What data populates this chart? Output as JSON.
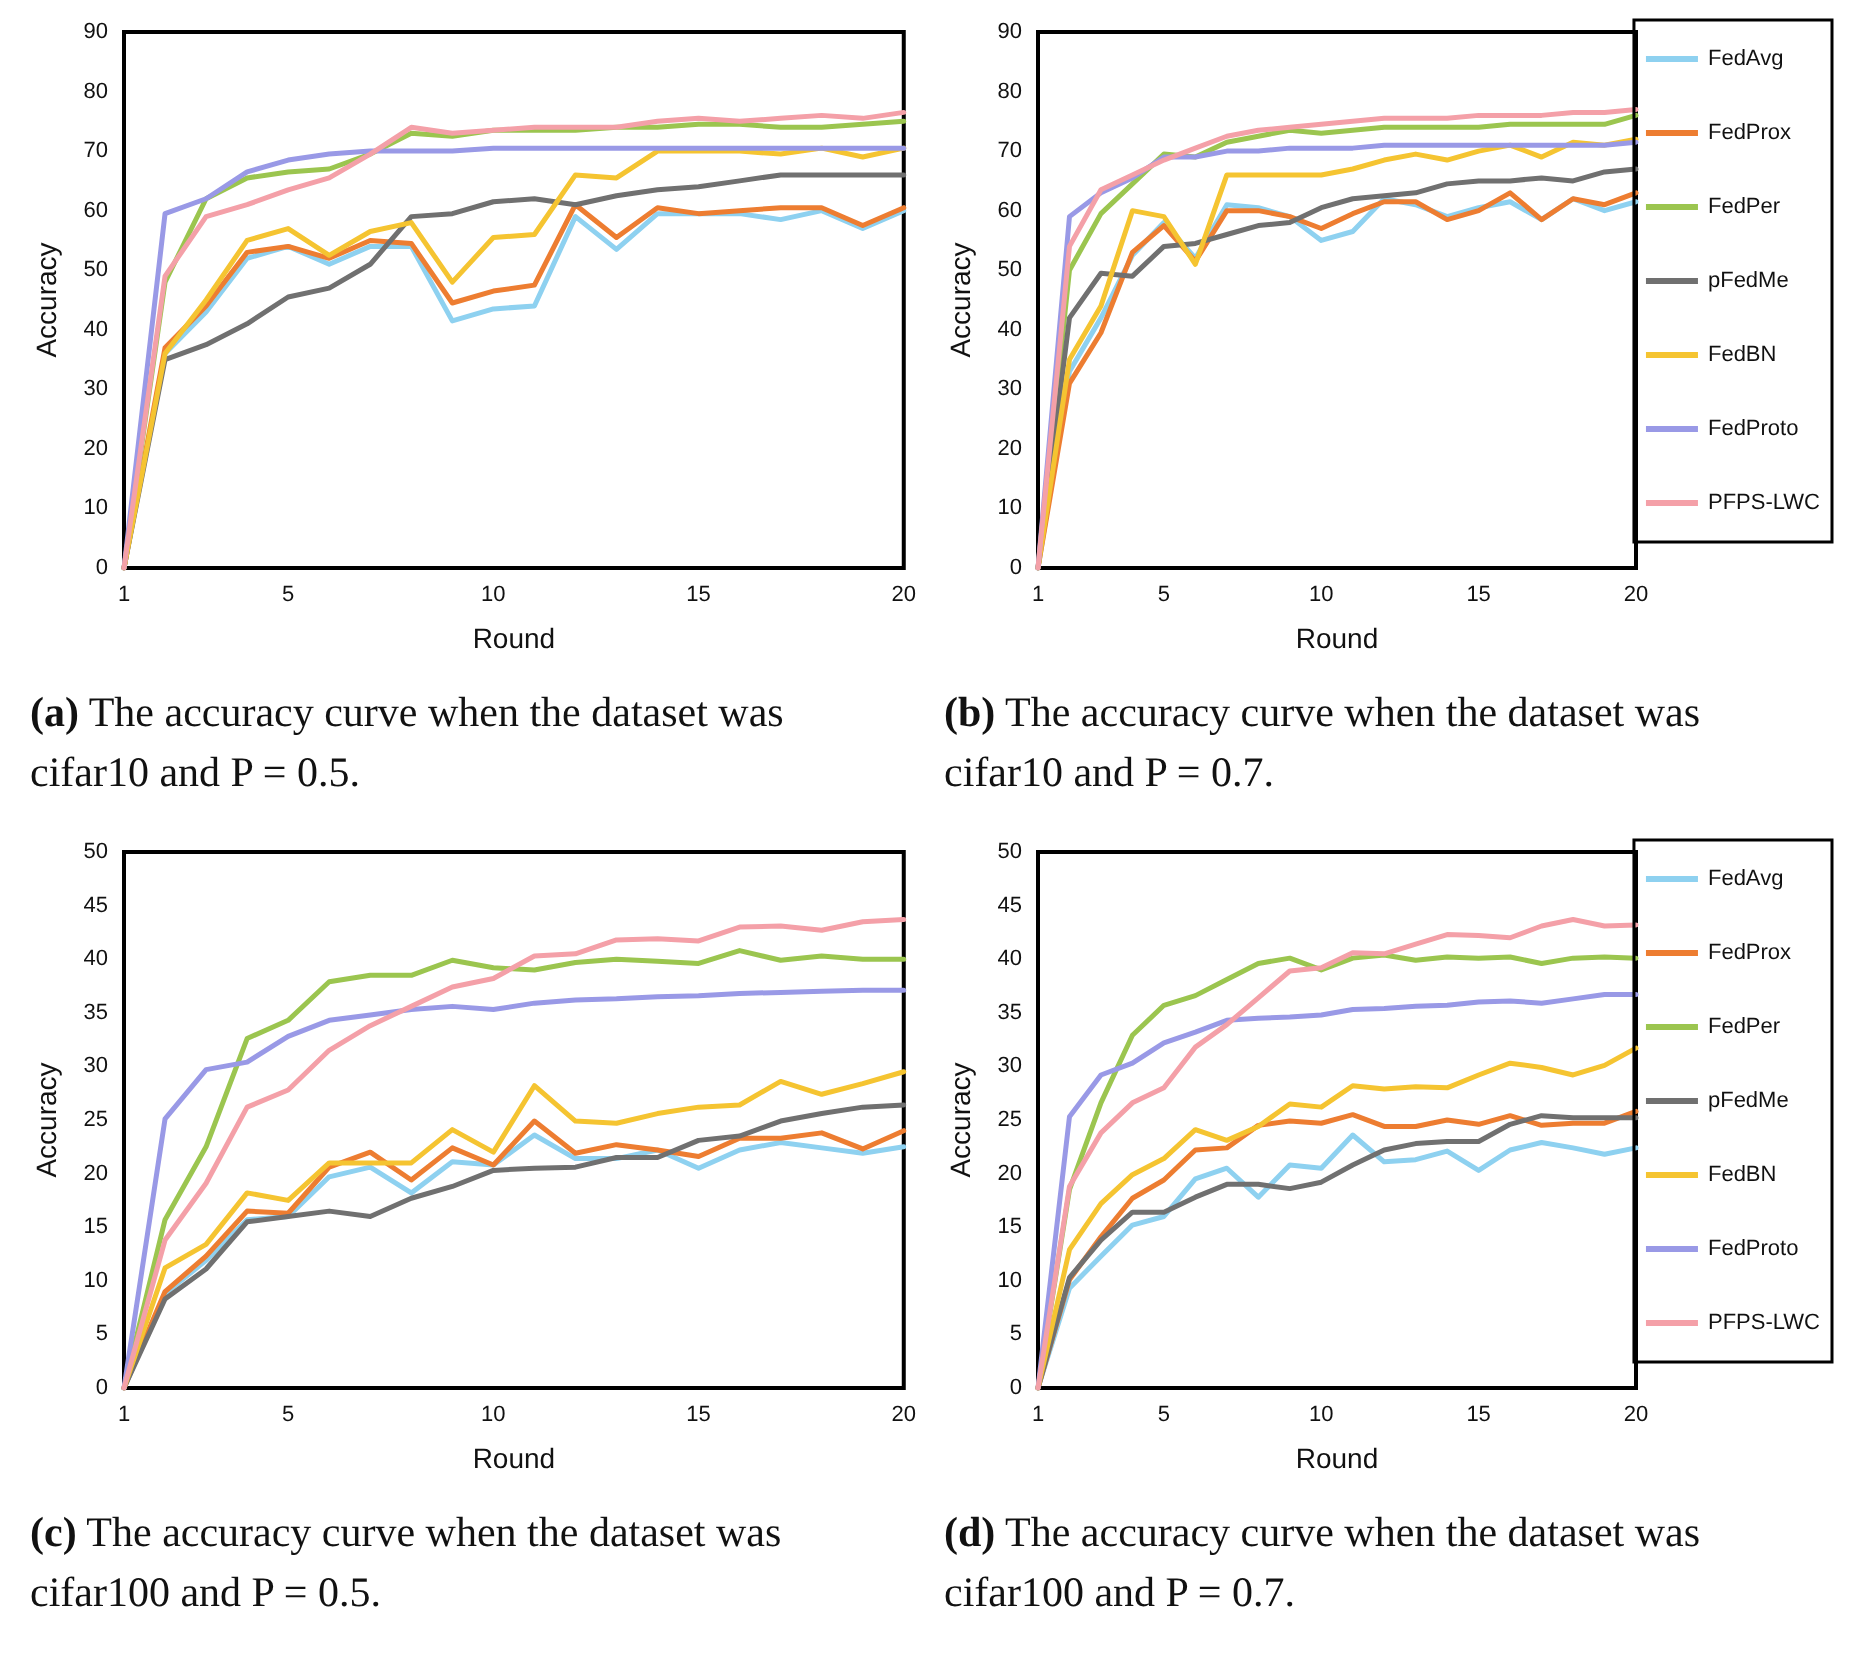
{
  "chart_data": [
    {
      "type": "line",
      "title": "(a) The accuracy curve when the dataset was cifar10 and P = 0.5.",
      "xlabel": "Round",
      "ylabel": "Accuracy",
      "x": [
        1,
        2,
        3,
        4,
        5,
        6,
        7,
        8,
        9,
        10,
        11,
        12,
        13,
        14,
        15,
        16,
        17,
        18,
        19,
        20
      ],
      "xlim": [
        1,
        20
      ],
      "xticks": [
        1,
        5,
        10,
        15,
        20
      ],
      "ylim": [
        0,
        90
      ],
      "yticks": [
        0,
        10,
        20,
        30,
        40,
        50,
        60,
        70,
        80,
        90
      ],
      "grid": false,
      "legend": false,
      "marker": "none",
      "line_style": "solid",
      "series": [
        {
          "color": "#8ed1f0",
          "values": [
            0,
            36,
            43,
            52,
            54,
            51,
            54,
            54,
            41.5,
            43.5,
            44,
            59,
            53.5,
            59.5,
            59.5,
            59.5,
            58.5,
            60,
            57,
            60
          ]
        },
        {
          "color": "#ed7d31",
          "values": [
            0,
            37,
            44,
            53,
            54,
            52,
            55,
            54.5,
            44.5,
            46.5,
            47.5,
            61,
            55.5,
            60.5,
            59.5,
            60,
            60.5,
            60.5,
            57.5,
            60.5
          ]
        },
        {
          "color": "#9bc54f",
          "values": [
            0,
            48,
            62,
            65.5,
            66.5,
            67,
            69.5,
            73,
            72.5,
            73.5,
            73.5,
            73.5,
            74,
            74,
            74.5,
            74.5,
            74,
            74,
            74.5,
            75
          ]
        },
        {
          "color": "#707070",
          "values": [
            0,
            35,
            37.5,
            41,
            45.5,
            47,
            51,
            59,
            59.5,
            61.5,
            62,
            61,
            62.5,
            63.5,
            64,
            65,
            66,
            66,
            66,
            66
          ]
        },
        {
          "color": "#f5c431",
          "values": [
            0,
            36,
            45,
            55,
            57,
            52.5,
            56.5,
            58,
            48,
            55.5,
            56,
            66,
            65.5,
            70,
            70,
            70,
            69.5,
            70.5,
            69,
            70.5
          ]
        },
        {
          "color": "#9999e6",
          "values": [
            0,
            59.5,
            62,
            66.5,
            68.5,
            69.5,
            70,
            70,
            70,
            70.5,
            70.5,
            70.5,
            70.5,
            70.5,
            70.5,
            70.5,
            70.5,
            70.5,
            70.5,
            70.5
          ]
        },
        {
          "color": "#f4a0a8",
          "values": [
            0,
            49,
            59,
            61,
            63.5,
            65.5,
            69.5,
            74,
            73,
            73.5,
            74,
            74,
            74,
            75,
            75.5,
            75,
            75.5,
            76,
            75.5,
            76.5
          ]
        }
      ]
    },
    {
      "type": "line",
      "title": "(b) The accuracy curve when the dataset was cifar10 and P = 0.7.",
      "xlabel": "Round",
      "ylabel": "Accuracy",
      "x": [
        1,
        2,
        3,
        4,
        5,
        6,
        7,
        8,
        9,
        10,
        11,
        12,
        13,
        14,
        15,
        16,
        17,
        18,
        19,
        20
      ],
      "xlim": [
        1,
        20
      ],
      "xticks": [
        1,
        5,
        10,
        15,
        20
      ],
      "ylim": [
        0,
        90
      ],
      "yticks": [
        0,
        10,
        20,
        30,
        40,
        50,
        60,
        70,
        80,
        90
      ],
      "grid": false,
      "legend": "right",
      "marker": "none",
      "line_style": "solid",
      "series": [
        {
          "name": "FedAvg",
          "color": "#8ed1f0",
          "values": [
            0,
            33,
            42,
            52.5,
            58,
            52,
            61,
            60.5,
            59,
            55,
            56.5,
            62,
            61,
            59,
            60.5,
            61.5,
            58.5,
            62,
            60,
            61.5
          ]
        },
        {
          "name": "FedProx",
          "color": "#ed7d31",
          "values": [
            0,
            31,
            39.5,
            53,
            57.5,
            51.5,
            60,
            60,
            59,
            57,
            59.5,
            61.5,
            61.5,
            58.5,
            60,
            63,
            58.5,
            62,
            61,
            63
          ]
        },
        {
          "name": "FedPer",
          "color": "#9bc54f",
          "values": [
            0,
            50,
            59.5,
            64.5,
            69.5,
            69,
            71.5,
            72.5,
            73.5,
            73,
            73.5,
            74,
            74,
            74,
            74,
            74.5,
            74.5,
            74.5,
            74.5,
            76
          ]
        },
        {
          "name": "pFedMe",
          "color": "#707070",
          "values": [
            0,
            42,
            49.5,
            49,
            54,
            54.5,
            56,
            57.5,
            58,
            60.5,
            62,
            62.5,
            63,
            64.5,
            65,
            65,
            65.5,
            65,
            66.5,
            67
          ]
        },
        {
          "name": "FedBN",
          "color": "#f5c431",
          "values": [
            0,
            35,
            44,
            60,
            59,
            51,
            66,
            66,
            66,
            66,
            67,
            68.5,
            69.5,
            68.5,
            70,
            71,
            69,
            71.5,
            71,
            72
          ]
        },
        {
          "name": "FedProto",
          "color": "#9999e6",
          "values": [
            0,
            59,
            63,
            65.5,
            69,
            69,
            70,
            70,
            70.5,
            70.5,
            70.5,
            71,
            71,
            71,
            71,
            71,
            71,
            71,
            71,
            71.5
          ]
        },
        {
          "name": "PFPS-LWC",
          "color": "#f4a0a8",
          "values": [
            0,
            54,
            63.5,
            66,
            68.5,
            70.5,
            72.5,
            73.5,
            74,
            74.5,
            75,
            75.5,
            75.5,
            75.5,
            76,
            76,
            76,
            76.5,
            76.5,
            77
          ]
        }
      ]
    },
    {
      "type": "line",
      "title": "(c) The accuracy curve when the dataset was cifar100 and P = 0.5.",
      "xlabel": "Round",
      "ylabel": "Accuracy",
      "x": [
        1,
        2,
        3,
        4,
        5,
        6,
        7,
        8,
        9,
        10,
        11,
        12,
        13,
        14,
        15,
        16,
        17,
        18,
        19,
        20
      ],
      "xlim": [
        1,
        20
      ],
      "xticks": [
        1,
        5,
        10,
        15,
        20
      ],
      "ylim": [
        0,
        50
      ],
      "yticks": [
        0,
        5,
        10,
        15,
        20,
        25,
        30,
        35,
        40,
        45,
        50
      ],
      "grid": false,
      "legend": false,
      "marker": "none",
      "line_style": "solid",
      "series": [
        {
          "color": "#8ed1f0",
          "values": [
            0,
            8.8,
            11.9,
            15.7,
            16,
            19.7,
            20.6,
            18.2,
            21.1,
            20.8,
            23.6,
            21.4,
            21.4,
            22.2,
            20.5,
            22.2,
            22.9,
            22.4,
            21.9,
            22.5
          ]
        },
        {
          "color": "#ed7d31",
          "values": [
            0,
            9,
            12.3,
            16.5,
            16.3,
            20.6,
            22,
            19.4,
            22.4,
            20.8,
            24.9,
            21.9,
            22.7,
            22.2,
            21.6,
            23.3,
            23.3,
            23.8,
            22.3,
            24
          ]
        },
        {
          "color": "#9bc54f",
          "values": [
            0,
            15.7,
            22.5,
            32.6,
            34.3,
            37.9,
            38.5,
            38.5,
            39.9,
            39.2,
            39,
            39.7,
            40,
            39.8,
            39.6,
            40.8,
            39.9,
            40.3,
            40,
            40
          ]
        },
        {
          "color": "#707070",
          "values": [
            0,
            8.3,
            11.1,
            15.5,
            16,
            16.5,
            16,
            17.7,
            18.8,
            20.3,
            20.5,
            20.6,
            21.5,
            21.5,
            23.1,
            23.5,
            24.9,
            25.6,
            26.2,
            26.4
          ]
        },
        {
          "color": "#f5c431",
          "values": [
            0,
            11.2,
            13.4,
            18.2,
            17.5,
            21,
            21,
            21,
            24.1,
            22,
            28.2,
            24.9,
            24.7,
            25.6,
            26.2,
            26.4,
            28.6,
            27.4,
            28.4,
            29.5
          ]
        },
        {
          "color": "#9999e6",
          "values": [
            0,
            25.1,
            29.7,
            30.4,
            32.8,
            34.3,
            34.8,
            35.3,
            35.6,
            35.3,
            35.9,
            36.2,
            36.3,
            36.5,
            36.6,
            36.8,
            36.9,
            37,
            37.1,
            37.1
          ]
        },
        {
          "color": "#f4a0a8",
          "values": [
            0,
            13.8,
            19.1,
            26.2,
            27.8,
            31.5,
            33.8,
            35.6,
            37.4,
            38.2,
            40.3,
            40.5,
            41.8,
            41.9,
            41.7,
            43,
            43.1,
            42.7,
            43.5,
            43.7
          ]
        }
      ]
    },
    {
      "type": "line",
      "title": "(d) The accuracy curve when the dataset was cifar100 and P = 0.7.",
      "xlabel": "Round",
      "ylabel": "Accuracy",
      "x": [
        1,
        2,
        3,
        4,
        5,
        6,
        7,
        8,
        9,
        10,
        11,
        12,
        13,
        14,
        15,
        16,
        17,
        18,
        19,
        20
      ],
      "xlim": [
        1,
        20
      ],
      "xticks": [
        1,
        5,
        10,
        15,
        20
      ],
      "ylim": [
        0,
        50
      ],
      "yticks": [
        0,
        5,
        10,
        15,
        20,
        25,
        30,
        35,
        40,
        45,
        50
      ],
      "grid": false,
      "legend": "right",
      "marker": "none",
      "line_style": "solid",
      "series": [
        {
          "name": "FedAvg",
          "color": "#8ed1f0",
          "values": [
            0,
            9.3,
            12.3,
            15.2,
            16,
            19.5,
            20.5,
            17.8,
            20.8,
            20.5,
            23.6,
            21.1,
            21.3,
            22.1,
            20.3,
            22.2,
            22.9,
            22.4,
            21.8,
            22.4
          ]
        },
        {
          "name": "FedProx",
          "color": "#ed7d31",
          "values": [
            0,
            10.1,
            14.1,
            17.7,
            19.4,
            22.2,
            22.4,
            24.5,
            24.9,
            24.7,
            25.5,
            24.4,
            24.4,
            25,
            24.6,
            25.4,
            24.5,
            24.7,
            24.7,
            25.8
          ]
        },
        {
          "name": "FedPer",
          "color": "#9bc54f",
          "values": [
            0,
            18.5,
            26.6,
            32.9,
            35.7,
            36.6,
            38.1,
            39.6,
            40.1,
            39,
            40.1,
            40.4,
            39.9,
            40.2,
            40.1,
            40.2,
            39.6,
            40.1,
            40.2,
            40.1
          ]
        },
        {
          "name": "pFedMe",
          "color": "#707070",
          "values": [
            0,
            10.3,
            13.8,
            16.4,
            16.4,
            17.8,
            19,
            19,
            18.6,
            19.2,
            20.8,
            22.2,
            22.8,
            23,
            23,
            24.6,
            25.4,
            25.2,
            25.2,
            25.2
          ]
        },
        {
          "name": "FedBN",
          "color": "#f5c431",
          "values": [
            0,
            12.9,
            17.2,
            19.9,
            21.4,
            24.1,
            23.1,
            24.4,
            26.5,
            26.2,
            28.2,
            27.9,
            28.1,
            28,
            29.2,
            30.3,
            29.9,
            29.2,
            30.1,
            31.7
          ]
        },
        {
          "name": "FedProto",
          "color": "#9999e6",
          "values": [
            0,
            25.3,
            29.2,
            30.3,
            32.2,
            33.2,
            34.3,
            34.5,
            34.6,
            34.8,
            35.3,
            35.4,
            35.6,
            35.7,
            36,
            36.1,
            35.9,
            36.3,
            36.7,
            36.7
          ]
        },
        {
          "name": "PFPS-LWC",
          "color": "#f4a0a8",
          "values": [
            0,
            18.8,
            23.8,
            26.6,
            28,
            31.8,
            33.9,
            36.4,
            38.9,
            39.2,
            40.6,
            40.5,
            41.4,
            42.3,
            42.2,
            42,
            43.1,
            43.7,
            43.1,
            43.2
          ]
        }
      ]
    }
  ]
}
